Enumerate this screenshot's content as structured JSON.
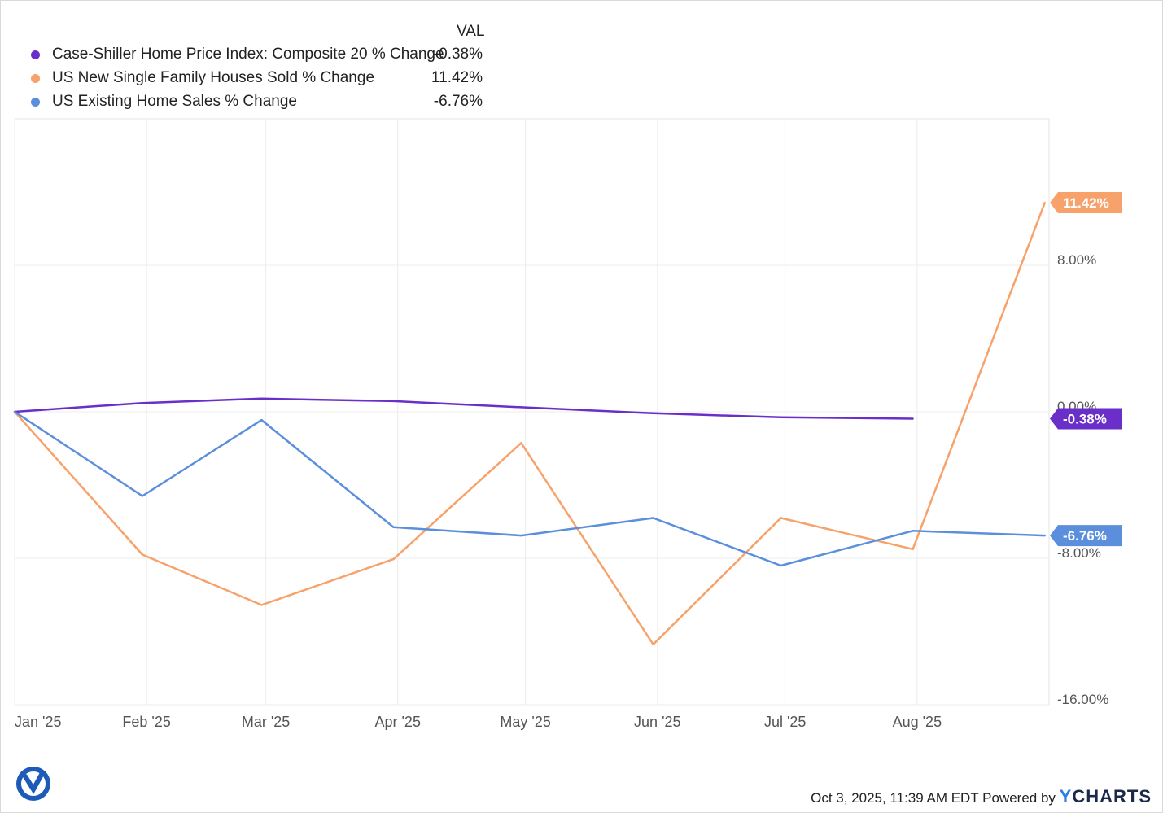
{
  "legend": {
    "header": "VAL",
    "items": [
      {
        "name": "Case-Shiller Home Price Index: Composite 20 % Change",
        "value": "-0.38%",
        "color": "#6a2fc9"
      },
      {
        "name": "US New Single Family Houses Sold % Change",
        "value": "11.42%",
        "color": "#f7a26b"
      },
      {
        "name": "US Existing Home Sales % Change",
        "value": "-6.76%",
        "color": "#5b8fdc"
      }
    ]
  },
  "chart_data": {
    "type": "line",
    "x_tick_labels": [
      "Jan '25",
      "Feb '25",
      "Mar '25",
      "Apr '25",
      "May '25",
      "Jun '25",
      "Jul '25",
      "Aug '25"
    ],
    "y_tick_labels": [
      "8.00%",
      "0.00%",
      "-8.00%",
      "-16.00%"
    ],
    "y_ticks": [
      8,
      0,
      -8,
      -16
    ],
    "ylim": [
      -16,
      16
    ],
    "grid": true,
    "y_axis_side": "right",
    "series": [
      {
        "name": "Case-Shiller Home Price Index: Composite 20 % Change",
        "color": "#6a2fc9",
        "end_label": "-0.38%",
        "points": [
          {
            "x": "2025-01-01",
            "y": 0.0
          },
          {
            "x": "2025-01-31",
            "y": 0.48
          },
          {
            "x": "2025-02-28",
            "y": 0.72
          },
          {
            "x": "2025-03-31",
            "y": 0.58
          },
          {
            "x": "2025-04-30",
            "y": 0.25
          },
          {
            "x": "2025-05-31",
            "y": -0.08
          },
          {
            "x": "2025-06-30",
            "y": -0.3
          },
          {
            "x": "2025-07-31",
            "y": -0.38
          }
        ]
      },
      {
        "name": "US New Single Family Houses Sold % Change",
        "color": "#f7a26b",
        "end_label": "11.42%",
        "points": [
          {
            "x": "2025-01-01",
            "y": 0.0
          },
          {
            "x": "2025-01-31",
            "y": -7.8
          },
          {
            "x": "2025-02-28",
            "y": -10.55
          },
          {
            "x": "2025-03-31",
            "y": -8.05
          },
          {
            "x": "2025-04-30",
            "y": -1.7
          },
          {
            "x": "2025-05-31",
            "y": -12.7
          },
          {
            "x": "2025-06-30",
            "y": -5.8
          },
          {
            "x": "2025-07-31",
            "y": -7.5
          },
          {
            "x": "2025-08-31",
            "y": 11.42
          }
        ]
      },
      {
        "name": "US Existing Home Sales % Change",
        "color": "#5b8fdc",
        "end_label": "-6.76%",
        "points": [
          {
            "x": "2025-01-01",
            "y": 0.0
          },
          {
            "x": "2025-01-31",
            "y": -4.6
          },
          {
            "x": "2025-02-28",
            "y": -0.45
          },
          {
            "x": "2025-03-31",
            "y": -6.3
          },
          {
            "x": "2025-04-30",
            "y": -6.76
          },
          {
            "x": "2025-05-31",
            "y": -5.8
          },
          {
            "x": "2025-06-30",
            "y": -8.4
          },
          {
            "x": "2025-07-31",
            "y": -6.5
          },
          {
            "x": "2025-08-31",
            "y": -6.76
          }
        ]
      }
    ]
  },
  "footer": {
    "timestamp": "Oct 3, 2025, 11:39 AM EDT Powered by",
    "brand_y": "Y",
    "brand_rest": "CHARTS"
  }
}
